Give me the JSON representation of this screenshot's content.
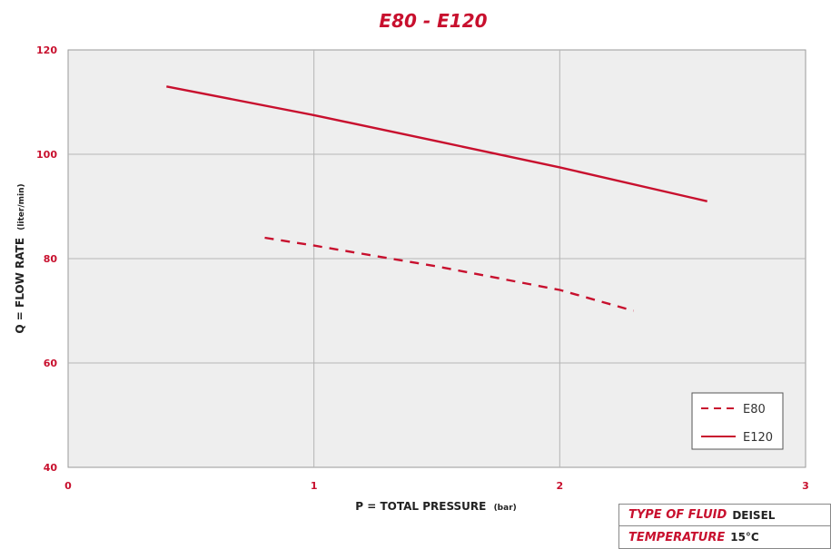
{
  "chart_data": {
    "type": "line",
    "title": "E80 - E120",
    "xlabel": "P = TOTAL PRESSURE",
    "xlabel_unit": "(bar)",
    "ylabel": "Q = FLOW RATE",
    "ylabel_unit": "(liter/min)",
    "xlim": [
      0,
      3
    ],
    "ylim": [
      40,
      120
    ],
    "x_ticks": [
      0,
      1,
      2,
      3
    ],
    "y_ticks": [
      40,
      60,
      80,
      100,
      120
    ],
    "grid": true,
    "legend_position": "bottom-right",
    "colors": {
      "accent": "#c8102e",
      "grid": "#b5b5b5",
      "plot_bg": "#eeeeee"
    },
    "series": [
      {
        "name": "E80",
        "style": "dashed",
        "x": [
          0.8,
          1.0,
          1.5,
          2.0,
          2.3
        ],
        "y": [
          84,
          82.5,
          78.5,
          74,
          70
        ]
      },
      {
        "name": "E120",
        "style": "solid",
        "x": [
          0.4,
          1.0,
          1.5,
          2.0,
          2.6
        ],
        "y": [
          113,
          107.5,
          102.5,
          97.5,
          91
        ]
      }
    ]
  },
  "info_table": {
    "fluid_label": "TYPE OF FLUID",
    "fluid_value": "DEISEL",
    "temp_label": "TEMPERATURE",
    "temp_value": "15°C"
  }
}
